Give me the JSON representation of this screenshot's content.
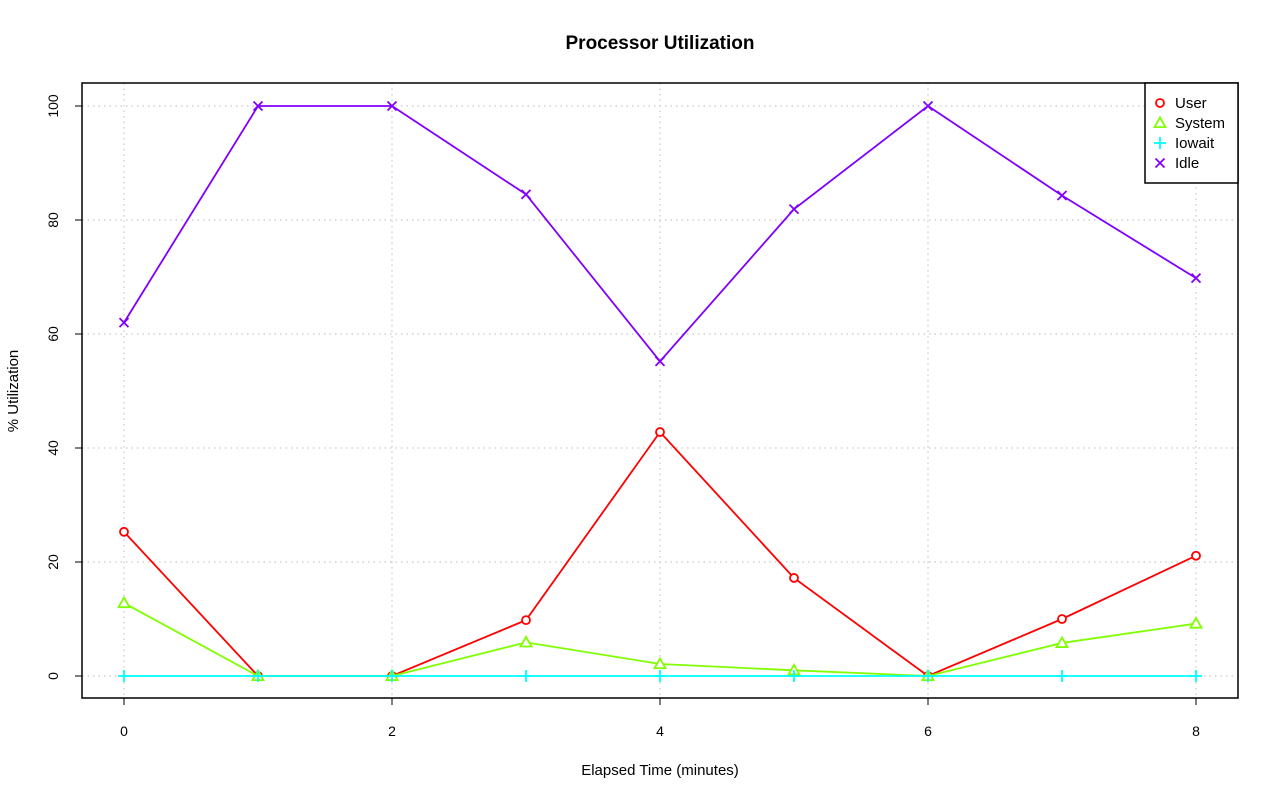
{
  "chart_data": {
    "type": "line",
    "title": "Processor Utilization",
    "xlabel": "Elapsed Time (minutes)",
    "ylabel": "% Utilization",
    "x": [
      0,
      1,
      2,
      3,
      4,
      5,
      6,
      7,
      8
    ],
    "xlim": [
      0,
      8
    ],
    "ylim": [
      0,
      100
    ],
    "xticks": [
      0,
      2,
      4,
      6,
      8
    ],
    "yticks": [
      0,
      20,
      40,
      60,
      80,
      100
    ],
    "grid": true,
    "legend_position": "top-right",
    "series": [
      {
        "name": "User",
        "color": "#ff0000",
        "marker": "circle",
        "values": [
          25.3,
          0,
          0,
          9.8,
          42.8,
          17.2,
          0,
          10.0,
          21.1
        ]
      },
      {
        "name": "System",
        "color": "#80ff00",
        "marker": "triangle",
        "values": [
          12.8,
          0,
          0,
          5.9,
          2.1,
          1.0,
          0,
          5.8,
          9.2
        ]
      },
      {
        "name": "Iowait",
        "color": "#00ffff",
        "marker": "plus",
        "values": [
          0,
          0,
          0,
          0,
          0,
          0,
          0,
          0,
          0
        ]
      },
      {
        "name": "Idle",
        "color": "#8000ff",
        "marker": "cross",
        "values": [
          62.0,
          100,
          100,
          84.5,
          55.2,
          81.9,
          100,
          84.3,
          69.8
        ]
      }
    ]
  }
}
